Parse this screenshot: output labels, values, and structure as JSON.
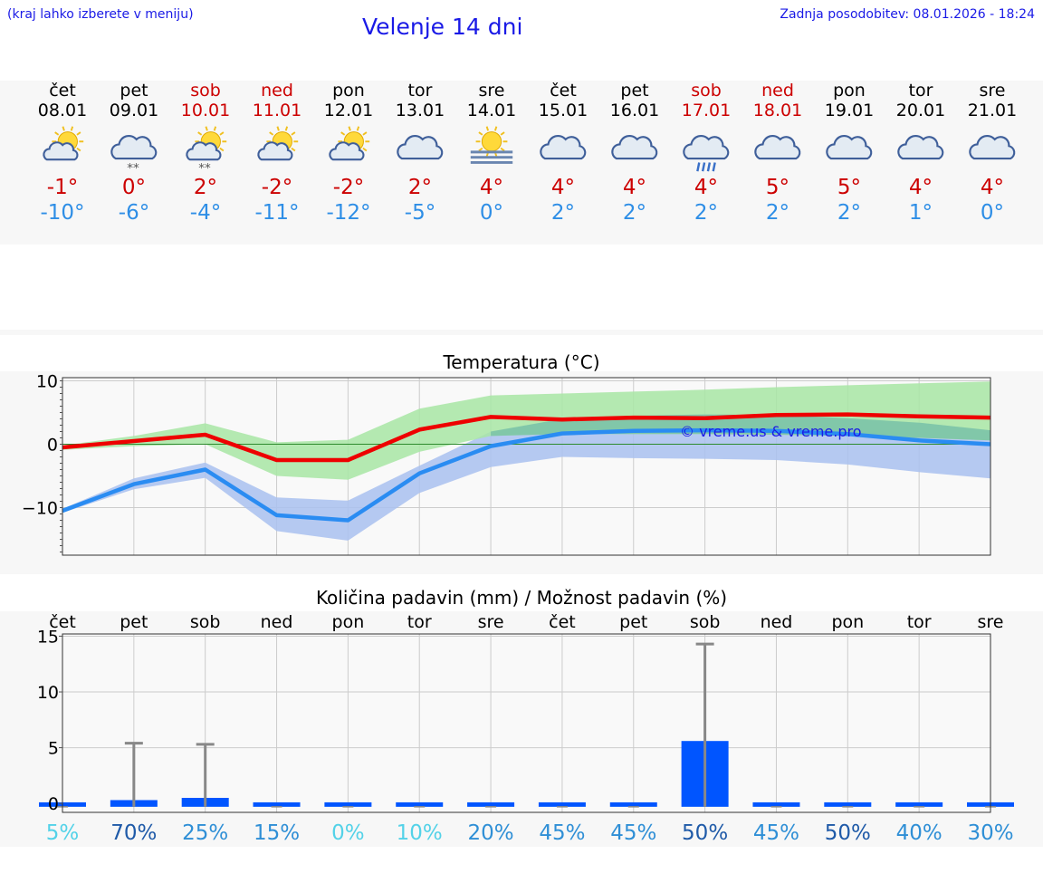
{
  "header": {
    "hint": "(kraj lahko izberete v meniju)",
    "title": "Velenje 14 dni",
    "updated": "Zadnja posodobitev: 08.01.2026 - 18:24"
  },
  "days": [
    {
      "name": "čet",
      "date": "08.01",
      "weekend": false,
      "icon": "sun-cloud-icon",
      "tmax": "-1°",
      "tmin": "-10°"
    },
    {
      "name": "pet",
      "date": "09.01",
      "weekend": false,
      "icon": "cloud-snow-icon",
      "tmax": "0°",
      "tmin": "-6°"
    },
    {
      "name": "sob",
      "date": "10.01",
      "weekend": true,
      "icon": "sun-cloud-snow-icon",
      "tmax": "2°",
      "tmin": "-4°"
    },
    {
      "name": "ned",
      "date": "11.01",
      "weekend": true,
      "icon": "sun-cloud-icon",
      "tmax": "-2°",
      "tmin": "-11°"
    },
    {
      "name": "pon",
      "date": "12.01",
      "weekend": false,
      "icon": "sun-cloud-icon",
      "tmax": "-2°",
      "tmin": "-12°"
    },
    {
      "name": "tor",
      "date": "13.01",
      "weekend": false,
      "icon": "cloud-icon",
      "tmax": "2°",
      "tmin": "-5°"
    },
    {
      "name": "sre",
      "date": "14.01",
      "weekend": false,
      "icon": "sun-fog-icon",
      "tmax": "4°",
      "tmin": "0°"
    },
    {
      "name": "čet",
      "date": "15.01",
      "weekend": false,
      "icon": "cloud-icon",
      "tmax": "4°",
      "tmin": "2°"
    },
    {
      "name": "pet",
      "date": "16.01",
      "weekend": false,
      "icon": "cloud-icon",
      "tmax": "4°",
      "tmin": "2°"
    },
    {
      "name": "sob",
      "date": "17.01",
      "weekend": true,
      "icon": "cloud-rain-icon",
      "tmax": "4°",
      "tmin": "2°"
    },
    {
      "name": "ned",
      "date": "18.01",
      "weekend": true,
      "icon": "cloud-icon",
      "tmax": "5°",
      "tmin": "2°"
    },
    {
      "name": "pon",
      "date": "19.01",
      "weekend": false,
      "icon": "cloud-icon",
      "tmax": "5°",
      "tmin": "2°"
    },
    {
      "name": "tor",
      "date": "20.01",
      "weekend": false,
      "icon": "cloud-icon",
      "tmax": "4°",
      "tmin": "1°"
    },
    {
      "name": "sre",
      "date": "21.01",
      "weekend": false,
      "icon": "cloud-icon",
      "tmax": "4°",
      "tmin": "0°"
    }
  ],
  "colors": {
    "max_line": "#ee0000",
    "min_line": "#2a8cf2",
    "max_band": "#a8e6a4",
    "min_band": "#a9c1f0",
    "overlap_band": "#7cc4a8",
    "bar": "#0055ff",
    "errbar": "#888888",
    "link": "#1a1ae6"
  },
  "chart_data": [
    {
      "type": "line",
      "title": "Temperatura (°C)",
      "watermark": "© vreme.us & vreme.pro",
      "ylim": [
        -17.5,
        10.5
      ],
      "yticks": [
        10,
        0,
        -10
      ],
      "xlim": [
        0,
        13
      ],
      "series": [
        {
          "name": "max",
          "values": [
            -0.5,
            0.5,
            1.5,
            -2.5,
            -2.5,
            2.3,
            4.3,
            3.9,
            4.2,
            4.1,
            4.6,
            4.7,
            4.4,
            4.2
          ]
        },
        {
          "name": "min",
          "values": [
            -10.5,
            -6.3,
            -4.0,
            -11.2,
            -12.0,
            -4.6,
            -0.3,
            1.7,
            2.1,
            2.2,
            2.1,
            1.6,
            0.6,
            0.0
          ]
        }
      ],
      "bands": [
        {
          "name": "max_range",
          "upper": [
            -0.2,
            1.3,
            3.3,
            0.3,
            0.7,
            5.6,
            7.7,
            8.0,
            8.3,
            8.6,
            9.0,
            9.3,
            9.6,
            9.9
          ],
          "lower": [
            -0.9,
            -0.3,
            0.0,
            -5.0,
            -5.6,
            -1.2,
            1.3,
            1.6,
            1.6,
            1.6,
            1.5,
            1.3,
            1.0,
            0.6
          ]
        },
        {
          "name": "min_range",
          "upper": [
            -10.2,
            -5.4,
            -2.9,
            -8.4,
            -8.9,
            -3.4,
            2.0,
            4.0,
            4.5,
            4.7,
            4.6,
            4.1,
            3.4,
            2.2
          ],
          "lower": [
            -10.8,
            -7.1,
            -5.3,
            -13.7,
            -15.2,
            -7.7,
            -3.6,
            -2.0,
            -2.2,
            -2.3,
            -2.5,
            -3.2,
            -4.4,
            -5.4
          ]
        }
      ]
    },
    {
      "type": "bar",
      "title": "Količina padavin (mm) / Možnost padavin (%)",
      "categories": [
        "čet",
        "pet",
        "sob",
        "ned",
        "pon",
        "tor",
        "sre",
        "čet",
        "pet",
        "sob",
        "ned",
        "pon",
        "tor",
        "sre"
      ],
      "values": [
        0.0,
        0.3,
        0.5,
        0.0,
        0.0,
        0.0,
        0.0,
        0.0,
        0.0,
        5.6,
        0.0,
        0.0,
        0.0,
        0.0
      ],
      "errmax": [
        0.0,
        5.4,
        5.3,
        0.0,
        0.0,
        0.0,
        0.0,
        0.0,
        0.0,
        14.3,
        0.0,
        0.0,
        0.0,
        0.0
      ],
      "ylim": [
        -0.8,
        15.2
      ],
      "yticks": [
        15,
        10,
        5,
        0
      ],
      "probability": [
        "5%",
        "70%",
        "25%",
        "15%",
        "0%",
        "10%",
        "20%",
        "45%",
        "45%",
        "50%",
        "45%",
        "50%",
        "40%",
        "30%"
      ],
      "probability_values": [
        5,
        70,
        25,
        15,
        0,
        10,
        20,
        45,
        45,
        50,
        45,
        50,
        40,
        30
      ]
    }
  ]
}
